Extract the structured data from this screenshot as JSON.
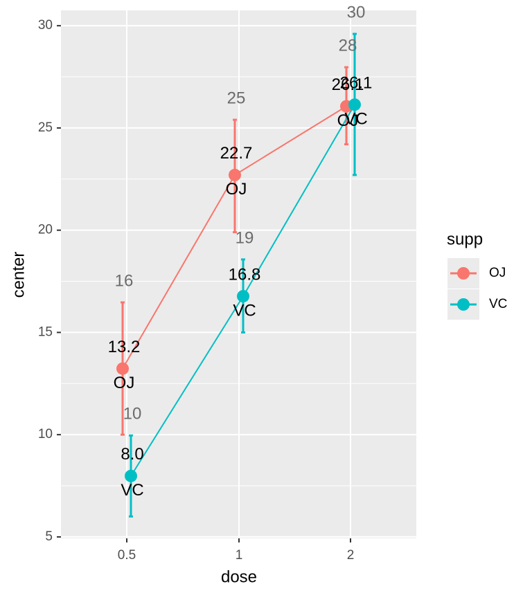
{
  "chart_data": {
    "type": "line",
    "x_label": "dose",
    "y_label": "center",
    "categories": [
      "0.5",
      "1",
      "2"
    ],
    "series": [
      {
        "name": "OJ",
        "color": "#F8766D",
        "values": [
          13.23,
          22.7,
          26.06
        ],
        "value_labels": [
          "13.2",
          "22.7",
          "26.1"
        ],
        "lower": [
          10.0,
          19.9,
          24.2
        ],
        "upper": [
          16.47,
          25.4,
          27.97
        ],
        "upper_labels": [
          "16",
          "25",
          "28"
        ]
      },
      {
        "name": "VC",
        "color": "#00BFC4",
        "values": [
          7.98,
          16.77,
          26.14
        ],
        "value_labels": [
          "8.0",
          "16.8",
          "26.1"
        ],
        "lower": [
          6.0,
          15.0,
          22.7
        ],
        "upper": [
          9.96,
          18.57,
          29.6
        ],
        "upper_labels": [
          "10",
          "19",
          "30"
        ]
      }
    ],
    "ylim": [
      4.93,
      30.75
    ],
    "yticks": [
      5,
      10,
      15,
      20,
      25,
      30
    ],
    "yminorticks": [
      7.5,
      12.5,
      17.5,
      22.5,
      27.5
    ],
    "grid": true,
    "legend_title": "supp",
    "legend_position": "right"
  }
}
